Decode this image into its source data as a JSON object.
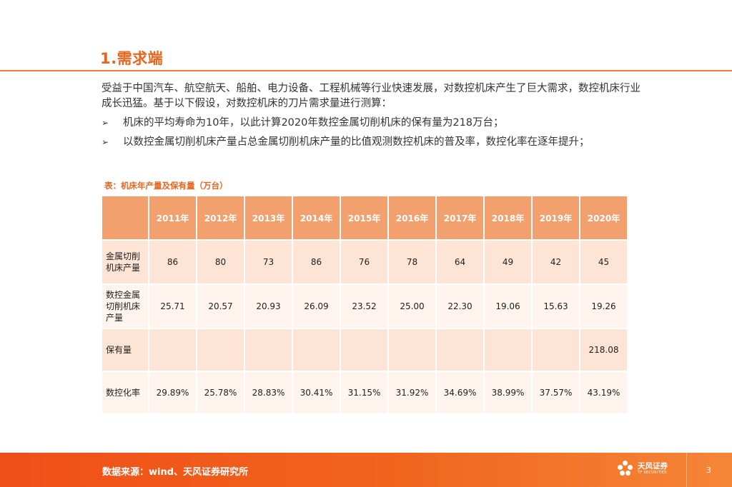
{
  "title": "1.需求端",
  "intro": "受益于中国汽车、航空航天、船舶、电力设备、工程机械等行业快速发展，对数控机床产生了巨大需求，数控机床行业成长迅猛。基于以下假设，对数控机床的刀片需求量进行测算：",
  "bullets": [
    "机床的平均寿命为10年，以此计算2020年数控金属切削机床的保有量为218万台；",
    "以数控金属切削机床产量占总金属切削机床产量的比值观测数控机床的普及率，数控化率在逐年提升；"
  ],
  "bullet_glyph": "➢",
  "table": {
    "caption": "表：机床年产量及保有量（万台）",
    "years": [
      "2011年",
      "2012年",
      "2013年",
      "2014年",
      "2015年",
      "2016年",
      "2017年",
      "2018年",
      "2019年",
      "2020年"
    ],
    "rows": [
      {
        "label": "金属切削机床产量",
        "values": [
          "86",
          "80",
          "73",
          "86",
          "76",
          "78",
          "64",
          "49",
          "42",
          "45"
        ]
      },
      {
        "label": "数控金属切削机床产量",
        "values": [
          "25.71",
          "20.57",
          "20.93",
          "26.09",
          "23.52",
          "25.00",
          "22.30",
          "19.06",
          "15.63",
          "19.26"
        ]
      },
      {
        "label": "保有量",
        "values": [
          "",
          "",
          "",
          "",
          "",
          "",
          "",
          "",
          "",
          "218.08"
        ]
      },
      {
        "label": "数控化率",
        "values": [
          "29.89%",
          "25.78%",
          "28.83%",
          "30.41%",
          "31.15%",
          "31.92%",
          "34.69%",
          "38.99%",
          "37.57%",
          "43.19%"
        ]
      }
    ]
  },
  "footer": {
    "source": "数据来源：wind、天风证券研究所",
    "logo_cn": "天风证券",
    "logo_en": "TF SECURITIES",
    "page": "3"
  },
  "colors": {
    "accent": "#e8651f",
    "header": "#f2a06d",
    "row_dark": "#fde4d5",
    "row_light": "#fff4ee"
  }
}
